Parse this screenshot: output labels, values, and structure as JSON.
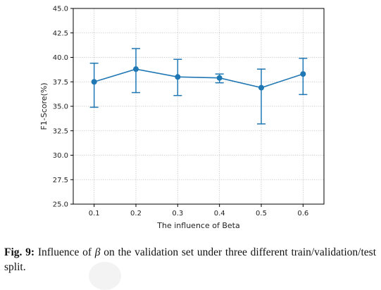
{
  "chart_data": {
    "type": "line",
    "title": "",
    "xlabel": "The influence of Beta",
    "ylabel": "F1-Score(%)",
    "x": [
      0.1,
      0.2,
      0.3,
      0.4,
      0.5,
      0.6
    ],
    "x_tick_labels": [
      "0.1",
      "0.2",
      "0.3",
      "0.4",
      "0.5",
      "0.6"
    ],
    "xlim": [
      0.05,
      0.65
    ],
    "ylim": [
      25.0,
      45.0
    ],
    "y_ticks": [
      25.0,
      27.5,
      30.0,
      32.5,
      35.0,
      37.5,
      40.0,
      42.5,
      45.0
    ],
    "y_tick_labels": [
      "25.0",
      "27.5",
      "30.0",
      "32.5",
      "35.0",
      "37.5",
      "40.0",
      "42.5",
      "45.0"
    ],
    "grid": true,
    "series": [
      {
        "name": "",
        "color": "#1f77b4",
        "values": [
          37.5,
          38.8,
          38.0,
          37.9,
          36.9,
          38.3
        ],
        "error_low": [
          34.9,
          36.4,
          36.1,
          37.4,
          33.2,
          36.2
        ],
        "error_high": [
          39.4,
          40.9,
          39.8,
          38.3,
          38.8,
          39.9
        ]
      }
    ]
  },
  "caption": {
    "label": "Fig. 9:",
    "text_before": "Influence of",
    "symbol": "β",
    "text_after": "on the validation set under three different train/validation/test split."
  }
}
